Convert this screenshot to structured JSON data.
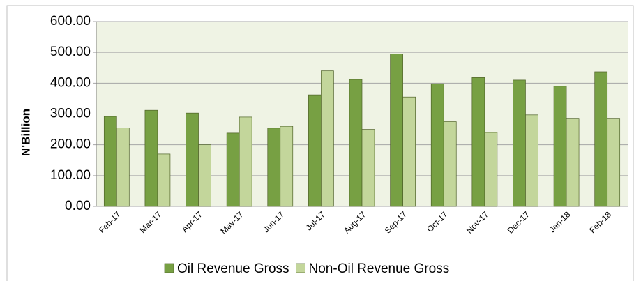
{
  "chart_data": {
    "type": "bar",
    "y_label": "N'Billion",
    "categories": [
      "Feb-17",
      "Mar-17",
      "Apr-17",
      "May-17",
      "Jun-17",
      "Jul-17",
      "Aug-17",
      "Sep-17",
      "Oct-17",
      "Nov-17",
      "Dec-17",
      "Jan-18",
      "Feb-18"
    ],
    "series": [
      {
        "name": "Oil Revenue Gross",
        "color": "#77a043",
        "values": [
          292,
          312,
          303,
          238,
          254,
          362,
          412,
          495,
          398,
          418,
          410,
          390,
          437
        ]
      },
      {
        "name": "Non-Oil Revenue Gross",
        "color": "#c3d69b",
        "values": [
          255,
          170,
          200,
          290,
          260,
          440,
          250,
          355,
          275,
          240,
          297,
          286,
          286
        ]
      }
    ],
    "ylim": [
      0,
      600
    ],
    "yticks": [
      {
        "value": 0,
        "label": "0.00"
      },
      {
        "value": 100,
        "label": "100.00"
      },
      {
        "value": 200,
        "label": "200.00"
      },
      {
        "value": 300,
        "label": "300.00"
      },
      {
        "value": 400,
        "label": "400.00"
      },
      {
        "value": 500,
        "label": "500.00"
      },
      {
        "value": 600,
        "label": "600.00"
      }
    ],
    "grid": true,
    "legend": "bottom"
  }
}
